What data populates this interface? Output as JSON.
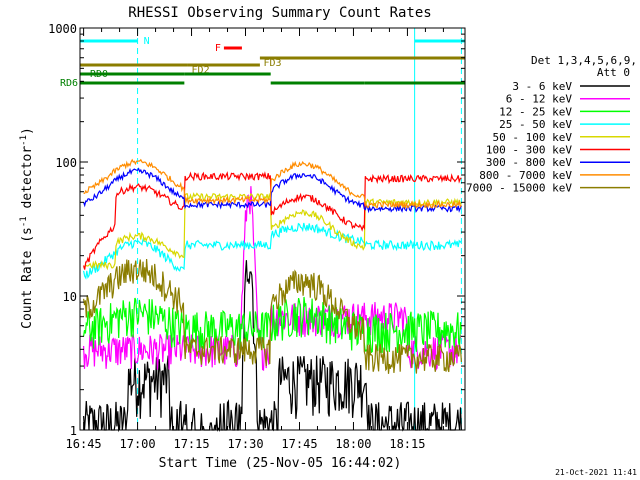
{
  "chart_data": {
    "type": "line",
    "title": "RHESSI Observing Summary Count Rates",
    "xlabel": "Start Time (25-Nov-05 16:44:02)",
    "ylabel_main": "Count Rate (s",
    "ylabel_sup1": "-1",
    "ylabel_mid": " detector",
    "ylabel_sup2": "-1",
    "ylabel_end": ")",
    "y_scale": "log",
    "ylim": [
      1,
      1000
    ],
    "x_range_min": [
      0,
      107
    ],
    "x_ticks": [
      {
        "label": "16:45",
        "min": 1
      },
      {
        "label": "17:00",
        "min": 16
      },
      {
        "label": "17:15",
        "min": 31
      },
      {
        "label": "17:30",
        "min": 46
      },
      {
        "label": "17:45",
        "min": 61
      },
      {
        "label": "18:00",
        "min": 76
      },
      {
        "label": "18:15",
        "min": 91
      }
    ],
    "y_ticks": [
      {
        "label": "1",
        "value": 1
      },
      {
        "label": "10",
        "value": 10
      },
      {
        "label": "100",
        "value": 100
      },
      {
        "label": "1000",
        "value": 1000
      }
    ],
    "legend": {
      "placement": "right",
      "header1": "Det 1,3,4,5,6,9,",
      "header2": "Att 0"
    },
    "series": [
      {
        "name": "3 - 6 keV",
        "color": "#000000"
      },
      {
        "name": "6 - 12 keV",
        "color": "#ff00ff"
      },
      {
        "name": "12 - 25 keV",
        "color": "#00ff00"
      },
      {
        "name": "25 - 50 keV",
        "color": "#00ffff"
      },
      {
        "name": "50 - 100 keV",
        "color": "#d8d800"
      },
      {
        "name": "100 - 300 keV",
        "color": "#ff0000"
      },
      {
        "name": "300 - 800 keV",
        "color": "#0000ff"
      },
      {
        "name": "800 - 7000 keV",
        "color": "#ff8c00"
      },
      {
        "name": "7000 - 15000 keV",
        "color": "#8b7d00"
      }
    ],
    "flag_bars": [
      {
        "label": "N",
        "color": "#00ffff",
        "segments": [
          [
            0,
            16
          ],
          [
            93,
            107
          ]
        ]
      },
      {
        "label": "F",
        "color": "#ff0000",
        "segments": [
          [
            40,
            45
          ]
        ]
      },
      {
        "label": "FD2",
        "color": "#8b7d00",
        "segments": [
          [
            0,
            30
          ],
          [
            30,
            50
          ]
        ]
      },
      {
        "label": "FD3",
        "color": "#8b7d00",
        "segments": [
          [
            50,
            107
          ]
        ]
      },
      {
        "label": "RD0",
        "color": "#008000",
        "segments": [
          [
            0,
            29
          ],
          [
            29,
            53
          ]
        ]
      },
      {
        "label": "RD6",
        "color": "#008000",
        "segments": [
          [
            0,
            29
          ],
          [
            53,
            79
          ],
          [
            79,
            107
          ]
        ]
      }
    ],
    "orbit_markers": {
      "solid": [
        0,
        93
      ],
      "dashed": [
        16,
        106
      ]
    },
    "footer_date": "21-Oct-2021 11:41"
  }
}
